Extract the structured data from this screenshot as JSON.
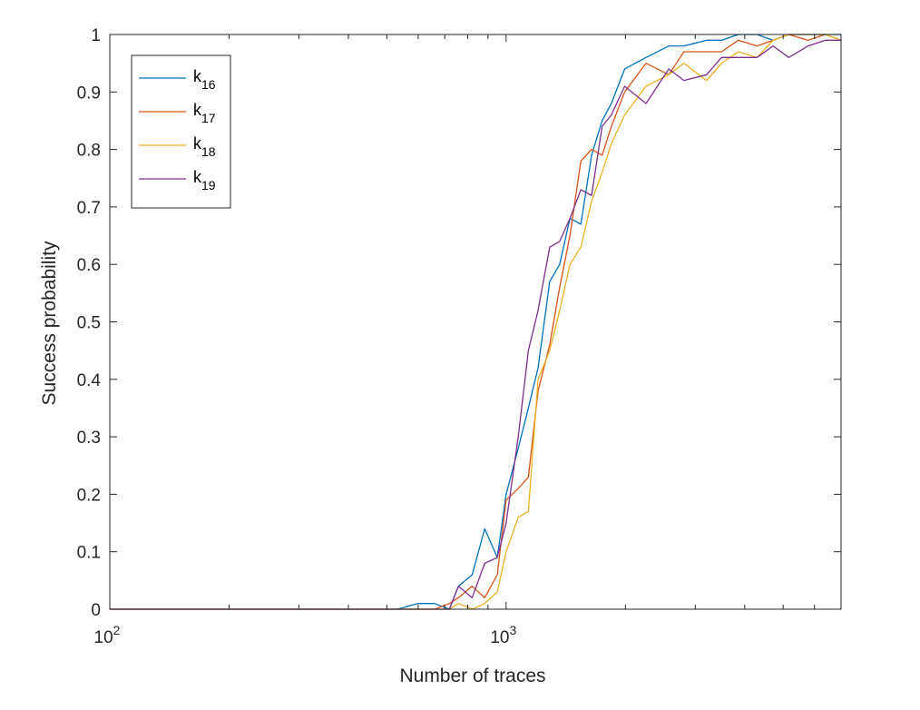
{
  "chart_data": {
    "type": "line",
    "title": "",
    "xlabel": "Number of traces",
    "ylabel": "Success probability",
    "xscale": "log",
    "xlim": [
      100,
      7000
    ],
    "ylim": [
      0,
      1
    ],
    "grid": false,
    "legend_position": "top-left",
    "x_ticks": [
      {
        "base": "10",
        "exp": "2",
        "value": 100
      },
      {
        "base": "10",
        "exp": "3",
        "value": 1000
      }
    ],
    "y_ticks": [
      "0",
      "0.1",
      "0.2",
      "0.3",
      "0.4",
      "0.5",
      "0.6",
      "0.7",
      "0.8",
      "0.9",
      "1"
    ],
    "x": [
      100,
      531,
      600,
      660,
      719,
      758,
      821,
      883,
      950,
      1000,
      1073,
      1138,
      1204,
      1288,
      1365,
      1449,
      1544,
      1643,
      1747,
      1843,
      1991,
      2254,
      2573,
      2809,
      3204,
      3496,
      3855,
      4295,
      4717,
      5165,
      5776,
      6385,
      7000
    ],
    "series": [
      {
        "name_base": "k",
        "name_sub": "16",
        "color": "#0072BD",
        "values": [
          0,
          0,
          0.01,
          0.01,
          0,
          0.04,
          0.06,
          0.14,
          0.09,
          0.2,
          0.28,
          0.35,
          0.42,
          0.57,
          0.6,
          0.68,
          0.67,
          0.79,
          0.85,
          0.88,
          0.94,
          0.96,
          0.98,
          0.98,
          0.99,
          0.99,
          1,
          1,
          0.99,
          1,
          1,
          1,
          1
        ]
      },
      {
        "name_base": "k",
        "name_sub": "17",
        "color": "#D95319",
        "values": [
          0,
          0,
          0,
          0,
          0.01,
          0.02,
          0.04,
          0.02,
          0.06,
          0.19,
          0.21,
          0.23,
          0.38,
          0.46,
          0.56,
          0.65,
          0.78,
          0.8,
          0.79,
          0.84,
          0.9,
          0.95,
          0.93,
          0.97,
          0.97,
          0.97,
          0.99,
          0.98,
          0.99,
          1,
          0.99,
          1,
          0.99
        ]
      },
      {
        "name_base": "k",
        "name_sub": "18",
        "color": "#EDB120",
        "values": [
          0,
          0,
          0,
          0,
          0,
          0.01,
          0,
          0.01,
          0.03,
          0.1,
          0.16,
          0.17,
          0.4,
          0.45,
          0.52,
          0.6,
          0.63,
          0.71,
          0.76,
          0.81,
          0.86,
          0.91,
          0.93,
          0.95,
          0.92,
          0.95,
          0.97,
          0.96,
          0.99,
          1,
          1,
          1,
          0.99
        ]
      },
      {
        "name_base": "k",
        "name_sub": "19",
        "color": "#7E2F8E",
        "values": [
          0,
          0,
          0,
          0,
          0,
          0.04,
          0.02,
          0.08,
          0.09,
          0.15,
          0.3,
          0.45,
          0.52,
          0.63,
          0.64,
          0.68,
          0.73,
          0.72,
          0.84,
          0.86,
          0.91,
          0.88,
          0.94,
          0.92,
          0.93,
          0.96,
          0.96,
          0.96,
          0.98,
          0.96,
          0.98,
          0.99,
          0.99
        ]
      }
    ]
  }
}
